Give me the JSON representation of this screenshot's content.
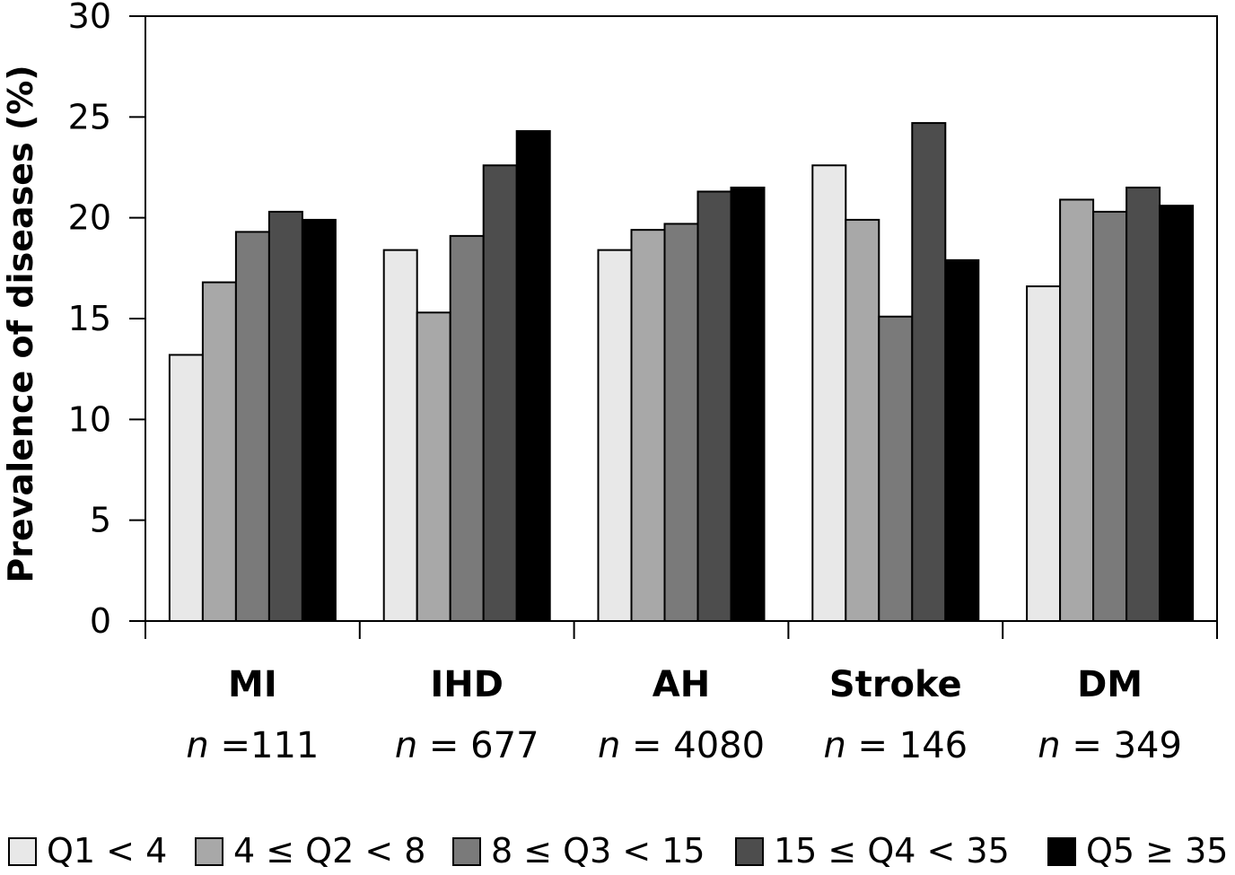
{
  "chart_data": {
    "type": "bar",
    "title": "",
    "xlabel": "",
    "ylabel": "Prevalence of diseases (%)",
    "ylim": [
      0,
      30
    ],
    "yticks": [
      0,
      5,
      10,
      15,
      20,
      25,
      30
    ],
    "grid": false,
    "legend_position": "bottom",
    "categories": [
      "MI",
      "IHD",
      "AH",
      "Stroke",
      "DM"
    ],
    "category_n": [
      {
        "prefix": "n",
        "rest": " =111"
      },
      {
        "prefix": "n",
        "rest": " = 677"
      },
      {
        "prefix": "n",
        "rest": " = 4080"
      },
      {
        "prefix": "n",
        "rest": " = 146"
      },
      {
        "prefix": "n",
        "rest": " = 349"
      }
    ],
    "series": [
      {
        "name": "Q1 < 4",
        "color": "#e8e8e8",
        "values": [
          13.2,
          18.4,
          18.4,
          22.6,
          16.6
        ]
      },
      {
        "name": "4 ≤ Q2 < 8",
        "color": "#a8a8a8",
        "values": [
          16.8,
          15.3,
          19.4,
          19.9,
          20.9
        ]
      },
      {
        "name": "8 ≤ Q3 < 15",
        "color": "#7a7a7a",
        "values": [
          19.3,
          19.1,
          19.7,
          15.1,
          20.3
        ]
      },
      {
        "name": "15 ≤ Q4 < 35",
        "color": "#4d4d4d",
        "values": [
          20.3,
          22.6,
          21.3,
          24.7,
          21.5
        ]
      },
      {
        "name": "Q5 ≥ 35",
        "color": "#000000",
        "values": [
          19.9,
          24.3,
          21.5,
          17.9,
          20.6
        ]
      }
    ]
  }
}
